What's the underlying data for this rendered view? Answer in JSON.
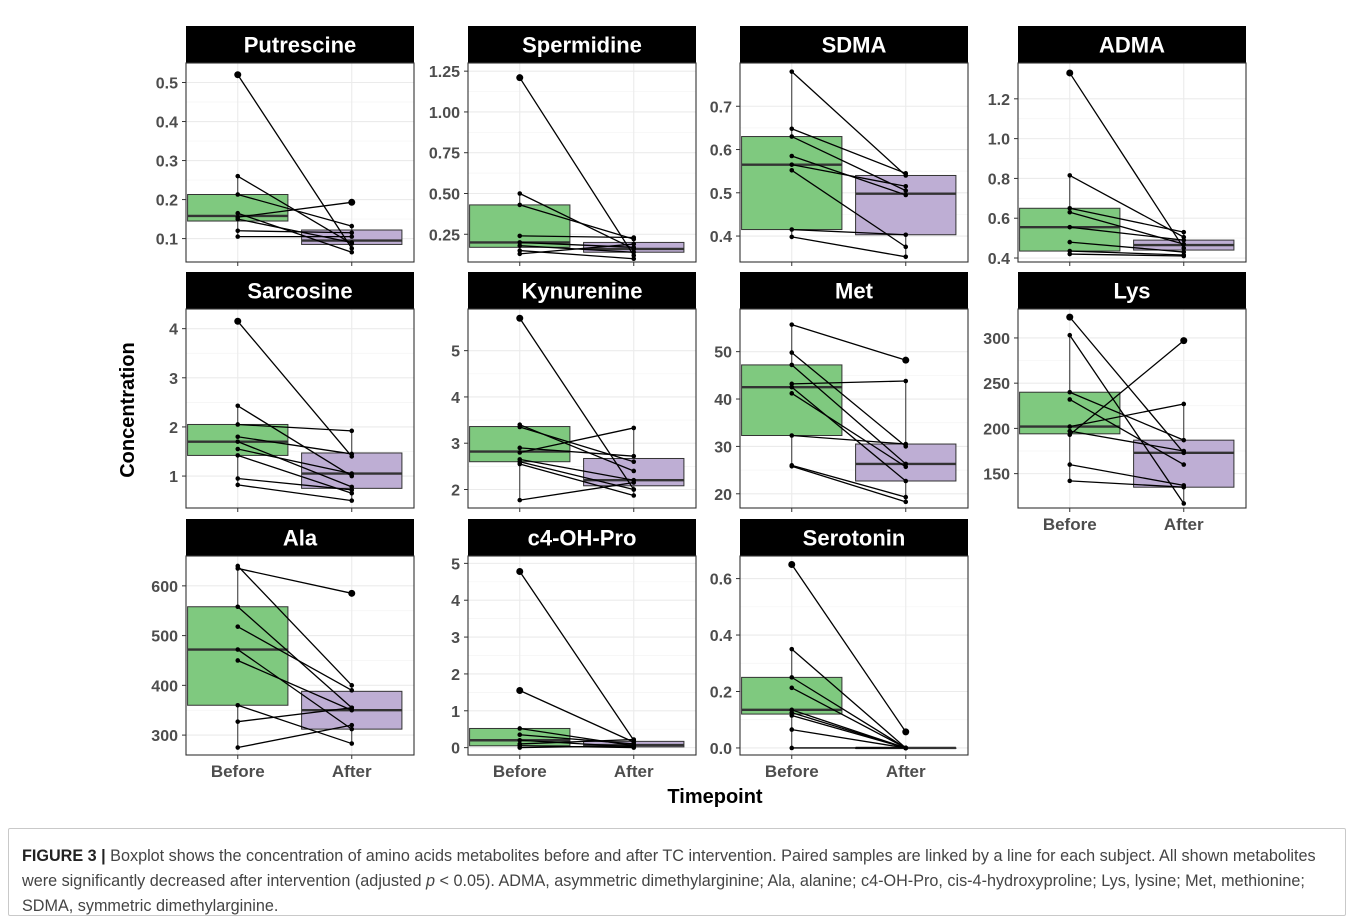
{
  "figure": {
    "y_axis_label": "Concentration",
    "x_axis_label": "Timepoint",
    "box_colors": {
      "Before": "#7fc97f",
      "After": "#beaed4"
    },
    "strip_background": "#000000",
    "strip_text_color": "#ffffff"
  },
  "caption": {
    "label": "FIGURE 3 |",
    "part1": " Boxplot shows the concentration of amino acids metabolites before and after TC intervention. Paired samples are linked by a line for each subject. All shown metabolites were significantly decreased after intervention (adjusted ",
    "p_symbol": "p",
    "part2": " < 0.05). ADMA, asymmetric dimethylarginine; Ala, alanine; c4-OH-Pro, cis-4-hydroxyproline; Lys, lysine; Met, methionine; SDMA, symmetric dimethylarginine."
  },
  "chart_data": [
    {
      "type": "box",
      "title": "Putrescine",
      "categories": [
        "Before",
        "After"
      ],
      "ylim": [
        0.04,
        0.55
      ],
      "yticks": [
        0.1,
        0.2,
        0.3,
        0.4,
        0.5
      ],
      "ytick_labels": [
        "0.1",
        "0.2",
        "0.3",
        "0.4",
        "0.5"
      ],
      "boxes": [
        {
          "category": "Before",
          "q1": 0.145,
          "median": 0.158,
          "q3": 0.213
        },
        {
          "category": "After",
          "q1": 0.085,
          "median": 0.095,
          "q3": 0.122
        }
      ],
      "pairs": [
        [
          0.52,
          0.075
        ],
        [
          0.26,
          0.087
        ],
        [
          0.213,
          0.132
        ],
        [
          0.165,
          0.065
        ],
        [
          0.155,
          0.193
        ],
        [
          0.15,
          0.09
        ],
        [
          0.12,
          0.115
        ],
        [
          0.105,
          0.105
        ]
      ],
      "outliers": [
        [
          0,
          0.52
        ],
        [
          1,
          0.193
        ]
      ],
      "show_x_labels": false
    },
    {
      "type": "box",
      "title": "Spermidine",
      "categories": [
        "Before",
        "After"
      ],
      "ylim": [
        0.08,
        1.3
      ],
      "yticks": [
        0.25,
        0.5,
        0.75,
        1.0,
        1.25
      ],
      "ytick_labels": [
        "0.25",
        "0.50",
        "0.75",
        "1.00",
        "1.25"
      ],
      "boxes": [
        {
          "category": "Before",
          "q1": 0.17,
          "median": 0.2,
          "q3": 0.43
        },
        {
          "category": "After",
          "q1": 0.14,
          "median": 0.16,
          "q3": 0.2
        }
      ],
      "pairs": [
        [
          1.21,
          0.12
        ],
        [
          0.5,
          0.16
        ],
        [
          0.43,
          0.22
        ],
        [
          0.24,
          0.23
        ],
        [
          0.2,
          0.17
        ],
        [
          0.18,
          0.14
        ],
        [
          0.15,
          0.1
        ],
        [
          0.13,
          0.19
        ]
      ],
      "outliers": [
        [
          0,
          1.21
        ]
      ],
      "show_x_labels": false
    },
    {
      "type": "box",
      "title": "SDMA",
      "categories": [
        "Before",
        "After"
      ],
      "ylim": [
        0.34,
        0.8
      ],
      "yticks": [
        0.4,
        0.5,
        0.6,
        0.7
      ],
      "ytick_labels": [
        "0.4",
        "0.5",
        "0.6",
        "0.7"
      ],
      "boxes": [
        {
          "category": "Before",
          "q1": 0.415,
          "median": 0.565,
          "q3": 0.63
        },
        {
          "category": "After",
          "q1": 0.403,
          "median": 0.498,
          "q3": 0.54
        }
      ],
      "pairs": [
        [
          0.78,
          0.54
        ],
        [
          0.648,
          0.545
        ],
        [
          0.63,
          0.505
        ],
        [
          0.585,
          0.495
        ],
        [
          0.565,
          0.515
        ],
        [
          0.552,
          0.375
        ],
        [
          0.415,
          0.403
        ],
        [
          0.398,
          0.352
        ]
      ],
      "outliers": [],
      "show_x_labels": false
    },
    {
      "type": "box",
      "title": "ADMA",
      "categories": [
        "Before",
        "After"
      ],
      "ylim": [
        0.38,
        1.38
      ],
      "yticks": [
        0.4,
        0.6,
        0.8,
        1.0,
        1.2
      ],
      "ytick_labels": [
        "0.4",
        "0.6",
        "0.8",
        "1.0",
        "1.2"
      ],
      "boxes": [
        {
          "category": "Before",
          "q1": 0.435,
          "median": 0.555,
          "q3": 0.65
        },
        {
          "category": "After",
          "q1": 0.44,
          "median": 0.465,
          "q3": 0.49
        }
      ],
      "pairs": [
        [
          1.33,
          0.45
        ],
        [
          0.815,
          0.505
        ],
        [
          0.65,
          0.53
        ],
        [
          0.63,
          0.47
        ],
        [
          0.555,
          0.49
        ],
        [
          0.48,
          0.43
        ],
        [
          0.435,
          0.415
        ],
        [
          0.42,
          0.41
        ]
      ],
      "outliers": [
        [
          0,
          1.33
        ]
      ],
      "show_x_labels": false
    },
    {
      "type": "box",
      "title": "Sarcosine",
      "categories": [
        "Before",
        "After"
      ],
      "ylim": [
        0.35,
        4.4
      ],
      "yticks": [
        1,
        2,
        3,
        4
      ],
      "ytick_labels": [
        "1",
        "2",
        "3",
        "4"
      ],
      "boxes": [
        {
          "category": "Before",
          "q1": 1.42,
          "median": 1.7,
          "q3": 2.05
        },
        {
          "category": "After",
          "q1": 0.75,
          "median": 1.05,
          "q3": 1.47
        }
      ],
      "pairs": [
        [
          4.15,
          1.4
        ],
        [
          2.43,
          1.0
        ],
        [
          2.05,
          1.92
        ],
        [
          1.8,
          1.45
        ],
        [
          1.7,
          0.78
        ],
        [
          1.55,
          1.05
        ],
        [
          1.42,
          0.65
        ],
        [
          0.95,
          0.72
        ],
        [
          0.82,
          0.5
        ]
      ],
      "outliers": [
        [
          0,
          4.15
        ]
      ],
      "show_x_labels": false
    },
    {
      "type": "box",
      "title": "Kynurenine",
      "categories": [
        "Before",
        "After"
      ],
      "ylim": [
        1.6,
        5.9
      ],
      "yticks": [
        2,
        3,
        4,
        5
      ],
      "ytick_labels": [
        "2",
        "3",
        "4",
        "5"
      ],
      "boxes": [
        {
          "category": "Before",
          "q1": 2.6,
          "median": 2.82,
          "q3": 3.36
        },
        {
          "category": "After",
          "q1": 2.08,
          "median": 2.2,
          "q3": 2.67
        }
      ],
      "pairs": [
        [
          5.7,
          2.0
        ],
        [
          3.4,
          2.4
        ],
        [
          3.35,
          2.6
        ],
        [
          2.9,
          2.72
        ],
        [
          2.8,
          3.33
        ],
        [
          2.65,
          2.2
        ],
        [
          2.6,
          2.0
        ],
        [
          2.55,
          1.87
        ],
        [
          1.77,
          2.15
        ]
      ],
      "outliers": [
        [
          0,
          5.7
        ]
      ],
      "show_x_labels": false
    },
    {
      "type": "box",
      "title": "Met",
      "categories": [
        "Before",
        "After"
      ],
      "ylim": [
        17,
        59
      ],
      "yticks": [
        20,
        30,
        40,
        50
      ],
      "ytick_labels": [
        "20",
        "30",
        "40",
        "50"
      ],
      "boxes": [
        {
          "category": "Before",
          "q1": 32.3,
          "median": 42.5,
          "q3": 47.2
        },
        {
          "category": "After",
          "q1": 22.7,
          "median": 26.3,
          "q3": 30.5
        }
      ],
      "pairs": [
        [
          55.7,
          48.2
        ],
        [
          49.8,
          30.0
        ],
        [
          47.2,
          26.3
        ],
        [
          43.2,
          43.8
        ],
        [
          42.5,
          22.7
        ],
        [
          41.2,
          25.7
        ],
        [
          32.3,
          30.5
        ],
        [
          26.0,
          19.3
        ],
        [
          25.8,
          18.3
        ]
      ],
      "outliers": [
        [
          1,
          48.2
        ]
      ],
      "show_x_labels": false
    },
    {
      "type": "box",
      "title": "Lys",
      "categories": [
        "Before",
        "After"
      ],
      "ylim": [
        112,
        332
      ],
      "yticks": [
        150,
        200,
        250,
        300
      ],
      "ytick_labels": [
        "150",
        "200",
        "250",
        "300"
      ],
      "boxes": [
        {
          "category": "Before",
          "q1": 194,
          "median": 202,
          "q3": 240
        },
        {
          "category": "After",
          "q1": 135,
          "median": 173,
          "q3": 187
        }
      ],
      "pairs": [
        [
          323,
          173
        ],
        [
          303,
          117
        ],
        [
          240,
          187
        ],
        [
          232,
          160
        ],
        [
          202,
          227
        ],
        [
          197,
          175
        ],
        [
          193,
          297
        ],
        [
          160,
          137
        ],
        [
          142,
          135
        ]
      ],
      "outliers": [
        [
          0,
          323
        ],
        [
          1,
          297
        ]
      ],
      "show_x_labels": true
    },
    {
      "type": "box",
      "title": "Ala",
      "categories": [
        "Before",
        "After"
      ],
      "ylim": [
        260,
        660
      ],
      "yticks": [
        300,
        400,
        500,
        600
      ],
      "ytick_labels": [
        "300",
        "400",
        "500",
        "600"
      ],
      "boxes": [
        {
          "category": "Before",
          "q1": 360,
          "median": 472,
          "q3": 558
        },
        {
          "category": "After",
          "q1": 312,
          "median": 350,
          "q3": 388
        }
      ],
      "pairs": [
        [
          640,
          400
        ],
        [
          635,
          585
        ],
        [
          558,
          355
        ],
        [
          518,
          390
        ],
        [
          472,
          312
        ],
        [
          450,
          350
        ],
        [
          360,
          283
        ],
        [
          327,
          355
        ],
        [
          275,
          320
        ]
      ],
      "outliers": [
        [
          1,
          585
        ]
      ],
      "show_x_labels": true
    },
    {
      "type": "box",
      "title": "c4-OH-Pro",
      "categories": [
        "Before",
        "After"
      ],
      "ylim": [
        -0.2,
        5.2
      ],
      "yticks": [
        0,
        1,
        2,
        3,
        4,
        5
      ],
      "ytick_labels": [
        "0",
        "1",
        "2",
        "3",
        "4",
        "5"
      ],
      "boxes": [
        {
          "category": "Before",
          "q1": 0.05,
          "median": 0.2,
          "q3": 0.52
        },
        {
          "category": "After",
          "q1": 0.02,
          "median": 0.07,
          "q3": 0.17
        }
      ],
      "pairs": [
        [
          4.78,
          0.2
        ],
        [
          1.55,
          0.15
        ],
        [
          0.52,
          0.05
        ],
        [
          0.35,
          0.1
        ],
        [
          0.2,
          0.02
        ],
        [
          0.1,
          0.22
        ],
        [
          0.05,
          0.0
        ],
        [
          0.0,
          0.05
        ]
      ],
      "outliers": [
        [
          0,
          4.78
        ],
        [
          0,
          1.55
        ]
      ],
      "show_x_labels": true
    },
    {
      "type": "box",
      "title": "Serotonin",
      "categories": [
        "Before",
        "After"
      ],
      "ylim": [
        -0.025,
        0.68
      ],
      "yticks": [
        0.0,
        0.2,
        0.4,
        0.6
      ],
      "ytick_labels": [
        "0.0",
        "0.2",
        "0.4",
        "0.6"
      ],
      "boxes": [
        {
          "category": "Before",
          "q1": 0.12,
          "median": 0.135,
          "q3": 0.25
        },
        {
          "category": "After",
          "q1": 0.0,
          "median": 0.0,
          "q3": 0.0
        }
      ],
      "pairs": [
        [
          0.65,
          0.057
        ],
        [
          0.35,
          0.0
        ],
        [
          0.25,
          0.0
        ],
        [
          0.213,
          0.0
        ],
        [
          0.135,
          0.0
        ],
        [
          0.125,
          0.0
        ],
        [
          0.115,
          0.0
        ],
        [
          0.065,
          0.0
        ],
        [
          0.0,
          0.0
        ]
      ],
      "outliers": [
        [
          0,
          0.65
        ],
        [
          1,
          0.057
        ]
      ],
      "show_x_labels": true
    }
  ]
}
